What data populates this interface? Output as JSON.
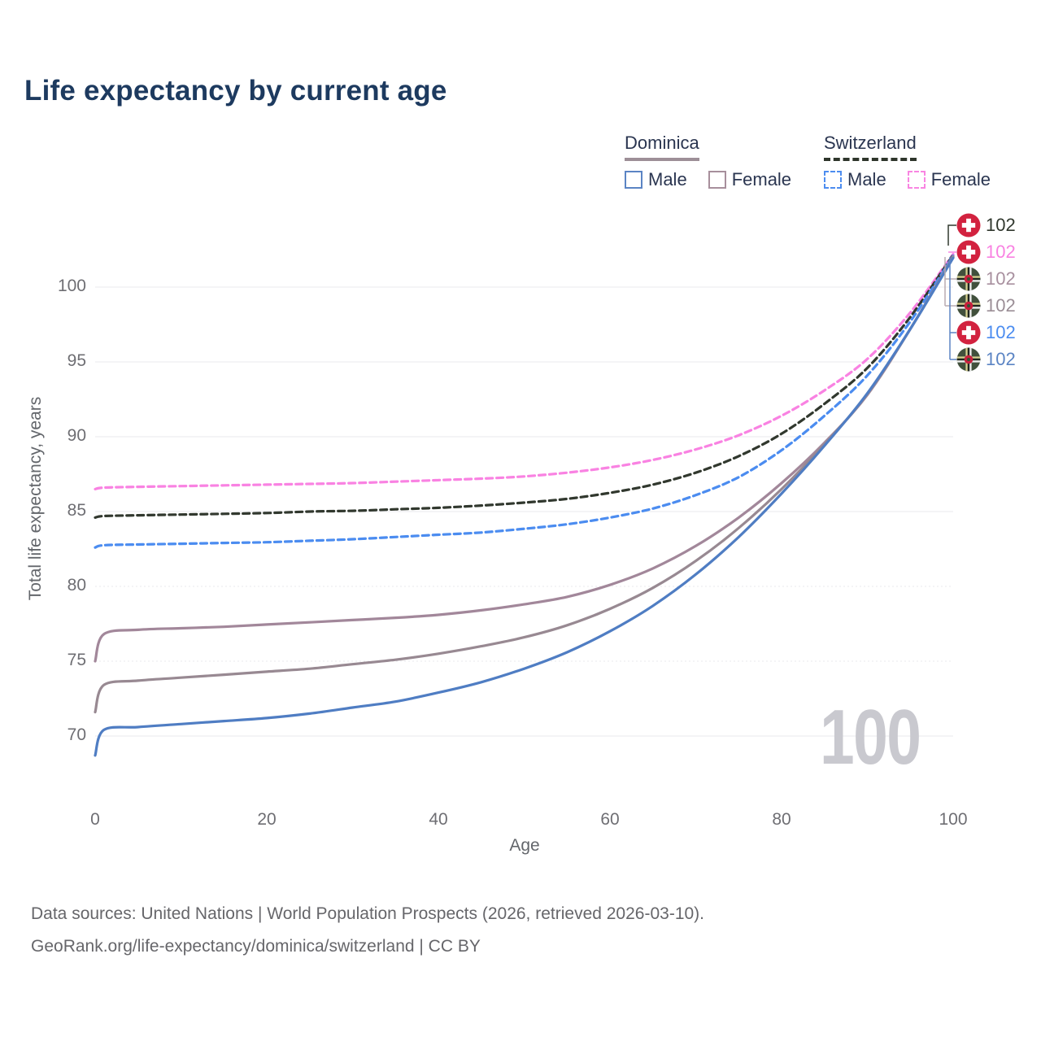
{
  "title": "Life expectancy by current age",
  "legend": {
    "groups": [
      {
        "name": "Dominica",
        "line_style": "solid",
        "underline_color": "#9d8f97",
        "items": [
          {
            "label": "Male",
            "color": "#4f7dc3"
          },
          {
            "label": "Female",
            "color": "#a78f9c"
          }
        ]
      },
      {
        "name": "Switzerland",
        "line_style": "dashed",
        "underline_color": "#2e352b",
        "items": [
          {
            "label": "Male",
            "color": "#4d8df0"
          },
          {
            "label": "Female",
            "color": "#f985e2"
          }
        ]
      }
    ]
  },
  "watermark": "100",
  "footer": {
    "line1": "Data sources: United Nations | World Population Prospects (2026, retrieved 2026-03-10).",
    "line2": "GeoRank.org/life-expectancy/dominica/switzerland | CC BY"
  },
  "chart_data": {
    "type": "line",
    "title": "Life expectancy by current age",
    "xlabel": "Age",
    "ylabel": "Total life expectancy, years",
    "xlim": [
      0,
      100
    ],
    "ylim": [
      68,
      103
    ],
    "x_ticks": [
      0,
      20,
      40,
      60,
      80,
      100
    ],
    "y_ticks": [
      70,
      75,
      80,
      85,
      90,
      95,
      100
    ],
    "dotted_gridlines": [
      75,
      80
    ],
    "legend_position": "top-right",
    "ages": [
      0,
      1,
      5,
      10,
      15,
      20,
      25,
      30,
      35,
      40,
      45,
      50,
      55,
      60,
      65,
      70,
      75,
      80,
      85,
      90,
      95,
      100
    ],
    "series": [
      {
        "name": "Switzerland Female",
        "country": "Switzerland",
        "sex": "Female",
        "color": "#f982e2",
        "dash": true,
        "values": [
          86.5,
          86.6,
          86.65,
          86.7,
          86.75,
          86.8,
          86.85,
          86.9,
          87.0,
          87.1,
          87.2,
          87.35,
          87.6,
          87.95,
          88.45,
          89.15,
          90.1,
          91.4,
          93.1,
          95.2,
          98.3,
          102.2
        ]
      },
      {
        "name": "Switzerland Total",
        "country": "Switzerland",
        "sex": "Both",
        "color": "#31382e",
        "dash": true,
        "values": [
          84.6,
          84.7,
          84.75,
          84.8,
          84.85,
          84.9,
          85.0,
          85.05,
          85.15,
          85.25,
          85.4,
          85.6,
          85.85,
          86.25,
          86.8,
          87.6,
          88.7,
          90.2,
          92.2,
          94.6,
          98.0,
          102.15
        ]
      },
      {
        "name": "Switzerland Male",
        "country": "Switzerland",
        "sex": "Male",
        "color": "#4b8cf0",
        "dash": true,
        "values": [
          82.6,
          82.75,
          82.8,
          82.85,
          82.9,
          82.95,
          83.05,
          83.15,
          83.3,
          83.45,
          83.6,
          83.85,
          84.15,
          84.6,
          85.2,
          86.1,
          87.3,
          89.1,
          91.4,
          94.1,
          97.7,
          102.1
        ]
      },
      {
        "name": "Dominica Female",
        "country": "Dominica",
        "sex": "Female",
        "color": "#a2879a",
        "dash": false,
        "values": [
          75.0,
          76.8,
          77.1,
          77.2,
          77.3,
          77.45,
          77.6,
          77.75,
          77.9,
          78.1,
          78.4,
          78.8,
          79.3,
          80.1,
          81.2,
          82.7,
          84.6,
          86.9,
          89.6,
          92.8,
          97.2,
          102.05
        ]
      },
      {
        "name": "Dominica Total",
        "country": "Dominica",
        "sex": "Both",
        "color": "#988992",
        "dash": false,
        "values": [
          71.6,
          73.4,
          73.7,
          73.9,
          74.1,
          74.3,
          74.5,
          74.8,
          75.1,
          75.5,
          76.0,
          76.6,
          77.4,
          78.5,
          79.9,
          81.7,
          83.9,
          86.5,
          89.5,
          92.85,
          97.2,
          102.0
        ]
      },
      {
        "name": "Dominica Male",
        "country": "Dominica",
        "sex": "Male",
        "color": "#4f7dc3",
        "dash": false,
        "values": [
          68.7,
          70.4,
          70.6,
          70.8,
          71.0,
          71.2,
          71.5,
          71.9,
          72.3,
          72.9,
          73.6,
          74.5,
          75.6,
          77.0,
          78.7,
          80.8,
          83.3,
          86.2,
          89.4,
          92.9,
          97.2,
          101.95
        ]
      }
    ],
    "end_labels": [
      {
        "value": "102",
        "flag": "swiss",
        "series": "Switzerland Total",
        "color": "#31382e"
      },
      {
        "value": "102",
        "flag": "swiss",
        "series": "Switzerland Female",
        "color": "#f982e2"
      },
      {
        "value": "102",
        "flag": "dominica",
        "series": "Dominica Female",
        "color": "#a8909f"
      },
      {
        "value": "102",
        "flag": "dominica",
        "series": "Dominica Total",
        "color": "#9b8e96"
      },
      {
        "value": "102",
        "flag": "swiss",
        "series": "Switzerland Male",
        "color": "#4b8cf0"
      },
      {
        "value": "102",
        "flag": "dominica",
        "series": "Dominica Male",
        "color": "#5b84c4"
      }
    ]
  }
}
